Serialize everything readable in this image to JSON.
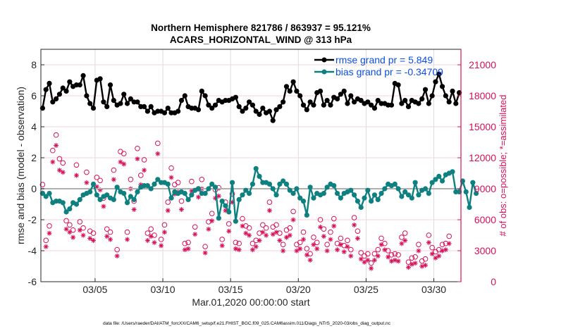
{
  "chart_data": {
    "type": "line",
    "title": "Northern Hemisphere 821786 / 863937 = 95.121%",
    "subtitle": "ACARS_HORIZONTAL_WIND @ 313 hPa",
    "xlabel": "Mar.01,2020 00:00:00 start",
    "ylabel": "rmse and bias (model - observation)",
    "y2label": "# of obs: o=possible; *=assimilated",
    "footnote": "data file: /Users/raeder/DAI/ATM_forcXX/CAM6_setup/f.e21.FHIST_BGC.f09_025.CAM6assim.011/Diags_NTrS_2020-03/obs_diag_output.nc",
    "x_start_day": 0,
    "x_step_days": 0.25,
    "xlim_days": [
      0,
      31
    ],
    "x_tick_days": [
      4,
      9,
      14,
      19,
      24,
      29
    ],
    "x_tick_labels": [
      "03/05",
      "03/10",
      "03/15",
      "03/20",
      "03/25",
      "03/30"
    ],
    "ylim": [
      -6,
      9
    ],
    "y_ticks": [
      -6,
      -4,
      -2,
      0,
      2,
      4,
      6,
      8
    ],
    "y2lim": [
      0,
      22500
    ],
    "y2_ticks": [
      0,
      3000,
      6000,
      9000,
      12000,
      15000,
      18000,
      21000
    ],
    "grid": true,
    "legend_position": "top-right",
    "legend": [
      {
        "label": "rmse grand pr = 5.849",
        "color": "#000000"
      },
      {
        "label": "bias grand pr = -0.34709",
        "color": "#0f8080"
      }
    ],
    "colors": {
      "rmse": "#000000",
      "bias": "#0f8080",
      "obs": "#d6105a",
      "zero_line": "#b0b0b0"
    },
    "series": [
      {
        "name": "rmse",
        "values": [
          5.2,
          6.4,
          6.8,
          5.6,
          5.8,
          6.1,
          6.5,
          6.3,
          6.9,
          6.6,
          6.7,
          6.7,
          7.3,
          6.0,
          5.5,
          5.2,
          7.0,
          7.1,
          5.6,
          5.3,
          6.7,
          5.7,
          5.4,
          5.5,
          6.1,
          5.5,
          5.8,
          5.6,
          5.6,
          5.3,
          5.3,
          5.0,
          5.3,
          4.9,
          5.0,
          5.0,
          4.9,
          5.2,
          4.9,
          4.9,
          5.0,
          5.7,
          6.0,
          5.3,
          5.2,
          5.2,
          5.1,
          6.3,
          6.0,
          5.4,
          5.2,
          5.4,
          5.7,
          5.6,
          5.7,
          5.7,
          5.8,
          5.9,
          5.3,
          5.0,
          5.2,
          5.6,
          5.4,
          5.0,
          4.8,
          5.2,
          4.9,
          5.0,
          4.4,
          5.1,
          5.3,
          5.6,
          6.6,
          6.3,
          6.9,
          6.3,
          6.0,
          5.4,
          5.1,
          5.6,
          5.4,
          6.2,
          6.3,
          5.4,
          5.7,
          5.4,
          5.9,
          5.8,
          6.1,
          6.3,
          5.5,
          6.0,
          5.6,
          5.8,
          5.7,
          5.5,
          5.6,
          5.4,
          5.2,
          5.7,
          5.5,
          5.5,
          5.4,
          5.4,
          6.8,
          6.7,
          5.5,
          5.7,
          5.3,
          5.7,
          5.6,
          5.5,
          5.8,
          6.4,
          5.5,
          6.0,
          6.9,
          7.4,
          6.6,
          6.0,
          5.6,
          6.3,
          5.5,
          6.2
        ]
      },
      {
        "name": "bias",
        "values": [
          -0.3,
          -0.5,
          -0.3,
          -0.9,
          -0.8,
          -0.8,
          -0.9,
          -1.5,
          -1.3,
          -0.9,
          -1.0,
          -0.7,
          -0.4,
          -0.3,
          -0.2,
          0.3,
          -0.4,
          -0.7,
          -0.5,
          -0.4,
          -0.6,
          -0.7,
          0.1,
          -0.2,
          -0.3,
          -0.9,
          -0.5,
          -0.7,
          -0.2,
          0.1,
          0.2,
          0.2,
          0.0,
          0.3,
          0.6,
          0.4,
          0.4,
          0.3,
          -0.6,
          -0.2,
          -0.3,
          -0.2,
          -0.3,
          -0.7,
          -0.4,
          -0.1,
          0.0,
          -0.3,
          -0.3,
          0.0,
          0.3,
          0.1,
          -1.9,
          -0.8,
          -1.1,
          -1.5,
          0.4,
          -2.1,
          -0.7,
          -0.4,
          -0.1,
          -0.3,
          0.3,
          1.3,
          0.8,
          0.4,
          0.4,
          0.3,
          0.0,
          -0.4,
          0.3,
          0.5,
          0.3,
          -0.1,
          -0.3,
          0.0,
          -0.6,
          -0.8,
          -1.7,
          0.1,
          -0.6,
          -0.3,
          -0.4,
          -0.3,
          0.1,
          0.3,
          0.2,
          -0.3,
          -0.6,
          -0.3,
          -0.2,
          -0.1,
          -0.4,
          -0.8,
          -1.2,
          -0.6,
          -0.1,
          -0.8,
          -0.4,
          -0.7,
          -0.3,
          0.0,
          0.3,
          0.2,
          0.3,
          0.0,
          -0.5,
          -0.2,
          -0.4,
          -0.6,
          0.4,
          -0.4,
          -0.1,
          0.0,
          -0.3,
          0.4,
          0.6,
          0.8,
          0.5,
          0.9,
          1.0,
          1.1,
          -0.2,
          -0.2,
          0.5,
          -0.2,
          -1.2,
          0.4,
          -0.3
        ]
      },
      {
        "name": "obs_possible",
        "values": [
          9400,
          4000,
          5400,
          12700,
          14200,
          11900,
          11500,
          5900,
          5500,
          5000,
          11300,
          5800,
          5200,
          10600,
          4900,
          4700,
          10100,
          9800,
          8100,
          5100,
          4800,
          10800,
          3100,
          12600,
          12400,
          4800,
          9900,
          7800,
          12900,
          10300,
          11800,
          4700,
          5100,
          4500,
          13400,
          4100,
          5500,
          7700,
          11000,
          9400,
          9600,
          7800,
          3700,
          3800,
          9700,
          5300,
          9000,
          9900,
          3400,
          5800,
          6600,
          8900,
          9100,
          4100,
          7700,
          5600,
          8500,
          3800,
          3700,
          6100,
          5400,
          5200,
          3700,
          4000,
          4700,
          5500,
          5200,
          7700,
          5300,
          5500,
          4700,
          3600,
          5000,
          5200,
          6800,
          3600,
          3800,
          4800,
          3200,
          2700,
          4300,
          3800,
          6000,
          5100,
          3600,
          4800,
          6100,
          3700,
          4200,
          3500,
          4000,
          3100,
          6200,
          4900,
          2800,
          2500,
          2700,
          1800,
          2700,
          3100,
          4200,
          3700,
          3000,
          2600,
          2700,
          2600,
          4300,
          4700,
          1900,
          2300,
          2400,
          3600,
          2000,
          2200,
          4500,
          3300,
          2900,
          3100,
          3600,
          3700,
          4400
        ]
      },
      {
        "name": "obs_assimilated",
        "values": [
          9000,
          3800,
          5100,
          12000,
          13600,
          11200,
          11000,
          5500,
          5200,
          4700,
          10700,
          5400,
          4900,
          10000,
          4600,
          4400,
          9600,
          9300,
          7700,
          4800,
          4500,
          10300,
          2900,
          12000,
          11800,
          4500,
          9400,
          7400,
          12300,
          9800,
          11200,
          4400,
          4800,
          4200,
          12800,
          3900,
          5200,
          7300,
          10500,
          8900,
          9100,
          7400,
          3500,
          3600,
          9200,
          5000,
          8600,
          9400,
          3200,
          5500,
          6300,
          8500,
          8700,
          3900,
          7300,
          5300,
          8100,
          3600,
          3500,
          5800,
          5100,
          4900,
          3500,
          3800,
          4400,
          5200,
          4900,
          7300,
          5000,
          5200,
          4400,
          3400,
          4700,
          4900,
          6400,
          3400,
          3600,
          4500,
          3000,
          2500,
          4000,
          3600,
          5700,
          4800,
          3400,
          4500,
          5800,
          3500,
          4000,
          3300,
          3800,
          2900,
          5900,
          4600,
          2600,
          2300,
          2500,
          1700,
          2500,
          2900,
          4000,
          3500,
          2800,
          2400,
          2500,
          2400,
          4100,
          4400,
          1800,
          2100,
          2200,
          3400,
          1900,
          2000,
          4200,
          3100,
          2700,
          2900,
          3400,
          3500,
          4100
        ]
      }
    ]
  }
}
